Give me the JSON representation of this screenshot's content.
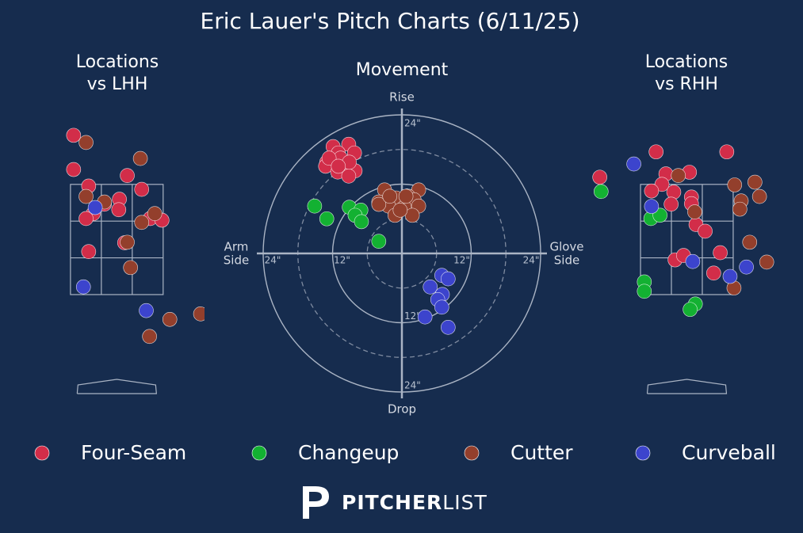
{
  "title": "Eric Lauer's Pitch Charts (6/11/25)",
  "brand": {
    "bold": "PITCHER",
    "light": "LIST"
  },
  "chart_data": [
    {
      "type": "scatter",
      "title": [
        "Locations",
        "vs LHH"
      ],
      "xlim": [
        -1.3,
        1.34
      ],
      "ylim": [
        -0.34,
        4.69
      ],
      "series": [
        {
          "name": "Four-Seam",
          "color": "#d22d49",
          "x": [
            -0.66,
            -0.66,
            -0.43,
            0.16,
            0.38,
            0.04,
            -0.19,
            0.03,
            -0.36,
            -0.47,
            0.51,
            0.69,
            0.12,
            -0.43
          ],
          "values": [
            4.39,
            3.77,
            3.47,
            3.66,
            3.41,
            3.23,
            3.14,
            3.04,
            2.97,
            2.88,
            2.88,
            2.85,
            2.44,
            2.28
          ]
        },
        {
          "name": "Cutter",
          "color": "#933f2c",
          "x": [
            -0.47,
            0.36,
            -0.47,
            -0.19,
            0.58,
            0.38,
            0.16,
            0.21,
            0.81,
            0.5,
            1.28
          ],
          "values": [
            4.26,
            3.97,
            3.28,
            3.18,
            2.97,
            2.81,
            2.45,
            1.99,
            1.05,
            0.74,
            1.15
          ]
        },
        {
          "name": "Curveball",
          "color": "#3c44cd",
          "x": [
            -0.33,
            -0.51,
            0.45
          ],
          "values": [
            3.08,
            1.64,
            1.21
          ]
        }
      ]
    },
    {
      "type": "polar",
      "title": [
        "Movement"
      ],
      "labels": {
        "top": [
          "Rise"
        ],
        "bottom": [
          "Drop"
        ],
        "left": [
          "Arm",
          "Side"
        ],
        "right": [
          "Glove",
          "Side"
        ]
      },
      "xlim": [
        -24,
        24
      ],
      "ylim": [
        -24,
        24
      ],
      "rticks": [
        {
          "value": 12,
          "label": "12\""
        },
        {
          "value": 24,
          "label": "24\""
        }
      ],
      "rticks_minor": [
        6,
        18
      ],
      "series": [
        {
          "name": "Four-Seam",
          "color": "#d22d49",
          "x": [
            -11.9,
            -9.2,
            -13.0,
            -11.0,
            -8.2,
            -13.2,
            -10.3,
            -8.1,
            -11.1,
            -9.2,
            -10.6,
            -12.6,
            -9.1,
            -11.0
          ],
          "values": [
            18.5,
            18.9,
            15.8,
            17.4,
            17.4,
            15.1,
            15.4,
            14.3,
            14.1,
            13.4,
            16.5,
            16.5,
            15.8,
            15.1
          ]
        },
        {
          "name": "Changeup",
          "color": "#13b132",
          "x": [
            -15.1,
            -13.0,
            -9.1,
            -7.1,
            -8.1,
            -7.0,
            -4.0
          ],
          "values": [
            8.2,
            6.0,
            8.0,
            7.5,
            6.6,
            5.5,
            2.1
          ]
        },
        {
          "name": "Cutter",
          "color": "#933f2c",
          "x": [
            -3.0,
            2.9,
            -4.0,
            -1.0,
            1.1,
            2.1,
            -2.3,
            0.4,
            2.9,
            -1.2,
            1.8,
            -4.0,
            -2.1,
            0.7,
            -0.3
          ],
          "values": [
            11.0,
            11.0,
            8.9,
            9.6,
            9.9,
            9.3,
            8.2,
            8.0,
            8.2,
            6.6,
            6.6,
            8.5,
            9.9,
            9.9,
            7.5
          ]
        },
        {
          "name": "Curveball",
          "color": "#3c44cd",
          "x": [
            6.9,
            8.0,
            4.9,
            7.0,
            6.2,
            6.9,
            4.0,
            8.0
          ],
          "values": [
            -3.8,
            -4.4,
            -5.8,
            -7.1,
            -8.0,
            -9.3,
            -11.0,
            -12.8
          ]
        }
      ]
    },
    {
      "type": "scatter",
      "title": [
        "Locations",
        "vs RHH"
      ],
      "xlim": [
        -1.35,
        1.29
      ],
      "ylim": [
        -0.34,
        4.69
      ],
      "series": [
        {
          "name": "Four-Seam",
          "color": "#d22d49",
          "x": [
            -0.47,
            0.61,
            -0.32,
            0.04,
            -0.38,
            -0.54,
            -0.2,
            0.07,
            -0.24,
            0.07,
            0.14,
            0.28,
            0.51,
            -0.18,
            -0.05,
            0.41,
            -1.33
          ],
          "values": [
            4.09,
            4.09,
            3.69,
            3.72,
            3.5,
            3.38,
            3.36,
            3.27,
            3.14,
            3.15,
            2.77,
            2.65,
            2.26,
            2.13,
            2.21,
            1.89,
            3.63
          ]
        },
        {
          "name": "Cutter",
          "color": "#933f2c",
          "x": [
            -0.13,
            0.73,
            1.04,
            1.11,
            0.83,
            0.81,
            0.12,
            0.96,
            1.22,
            0.72
          ],
          "values": [
            3.66,
            3.49,
            3.54,
            3.28,
            3.2,
            3.05,
            3.0,
            2.45,
            2.09,
            1.62
          ]
        },
        {
          "name": "Changeup",
          "color": "#13b132",
          "x": [
            -1.31,
            -0.55,
            -0.41,
            -0.65,
            -0.65,
            0.13,
            0.05
          ],
          "values": [
            3.37,
            2.88,
            2.94,
            1.73,
            1.56,
            1.33,
            1.23
          ]
        },
        {
          "name": "Curveball",
          "color": "#3c44cd",
          "x": [
            -0.81,
            -0.54,
            0.09,
            0.66,
            0.91
          ],
          "values": [
            3.87,
            3.1,
            2.1,
            1.83,
            2.0
          ]
        }
      ]
    }
  ]
}
